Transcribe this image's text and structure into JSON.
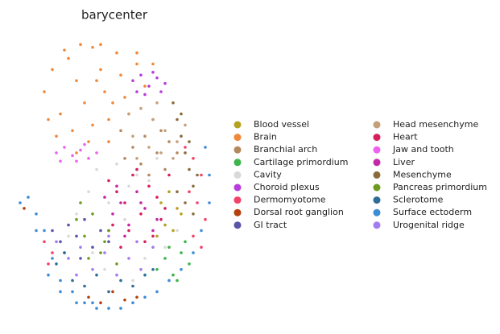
{
  "chart_data": {
    "type": "scatter",
    "title": "barycenter",
    "xlim": [
      0,
      100
    ],
    "ylim": [
      0,
      100
    ],
    "series": [
      {
        "name": "Blood vessel",
        "color": "#b5a21f",
        "x": [
          72,
          76,
          80,
          74,
          78,
          82,
          70
        ],
        "y": [
          40,
          44,
          38,
          32,
          30,
          36,
          28
        ]
      },
      {
        "name": "Brain",
        "color": "#f0883a",
        "x": [
          14,
          18,
          22,
          26,
          30,
          34,
          38,
          42,
          46,
          50,
          20,
          28,
          36,
          44,
          52,
          60,
          24,
          32,
          40,
          48,
          56,
          64,
          30,
          38,
          46,
          54,
          16,
          60,
          68,
          42
        ],
        "y": [
          80,
          88,
          72,
          92,
          84,
          76,
          96,
          88,
          70,
          94,
          64,
          66,
          62,
          80,
          86,
          90,
          95,
          97,
          84,
          76,
          72,
          82,
          58,
          68,
          62,
          78,
          70,
          94,
          90,
          97
        ]
      },
      {
        "name": "Branchial arch",
        "color": "#b5895f",
        "x": [
          52,
          58,
          64,
          70,
          76,
          54,
          62,
          68,
          74,
          80,
          66,
          72
        ],
        "y": [
          66,
          60,
          64,
          58,
          62,
          56,
          54,
          70,
          52,
          58,
          50,
          66
        ]
      },
      {
        "name": "Cartilage primordium",
        "color": "#3cb54a",
        "x": [
          70,
          74,
          78,
          82,
          86,
          76,
          84,
          80
        ],
        "y": [
          16,
          20,
          14,
          22,
          18,
          24,
          26,
          12
        ]
      },
      {
        "name": "Cavity",
        "color": "#d9d9d9",
        "x": [
          40,
          50,
          60,
          70,
          36,
          46,
          56,
          66,
          30,
          42,
          54,
          64,
          74,
          26,
          38,
          80,
          44,
          58
        ],
        "y": [
          52,
          54,
          50,
          56,
          44,
          40,
          46,
          48,
          36,
          30,
          34,
          20,
          24,
          28,
          22,
          30,
          16,
          12
        ]
      },
      {
        "name": "Choroid plexus",
        "color": "#b83ddb",
        "x": [
          58,
          62,
          66,
          70,
          74,
          60,
          64,
          68,
          72
        ],
        "y": [
          84,
          86,
          82,
          85,
          83,
          80,
          79,
          87,
          80
        ]
      },
      {
        "name": "Dermomyotome",
        "color": "#f2426a",
        "x": [
          84,
          88,
          92,
          86,
          90,
          94,
          88,
          92,
          14,
          18,
          16
        ],
        "y": [
          60,
          56,
          50,
          44,
          40,
          34,
          28,
          24,
          26,
          22,
          18
        ]
      },
      {
        "name": "Dorsal root ganglion",
        "color": "#b5410f",
        "x": [
          36,
          42,
          48,
          54,
          60,
          4
        ],
        "y": [
          6,
          4,
          8,
          5,
          6,
          38
        ]
      },
      {
        "name": "GI tract",
        "color": "#5a55a8",
        "x": [
          18,
          22,
          26,
          30,
          34,
          38,
          42,
          46,
          24,
          32
        ],
        "y": [
          30,
          26,
          32,
          28,
          34,
          24,
          30,
          26,
          22,
          20
        ]
      },
      {
        "name": "Head mesenchyme",
        "color": "#c4a07a",
        "x": [
          56,
          62,
          68,
          74,
          80,
          58,
          66,
          72,
          78,
          84,
          60,
          70
        ],
        "y": [
          72,
          74,
          70,
          66,
          62,
          64,
          60,
          58,
          56,
          68,
          56,
          76
        ]
      },
      {
        "name": "Heart",
        "color": "#d61f5f",
        "x": [
          46,
          50,
          54,
          58,
          62,
          66,
          70,
          74,
          48,
          56,
          64,
          72,
          52,
          60,
          68,
          76
        ],
        "y": [
          48,
          44,
          40,
          50,
          36,
          46,
          42,
          38,
          32,
          30,
          26,
          34,
          24,
          52,
          28,
          50
        ]
      },
      {
        "name": "Jaw and tooth",
        "color": "#ee62ee",
        "x": [
          20,
          24,
          28,
          32,
          36,
          22,
          30,
          34,
          40
        ],
        "y": [
          58,
          60,
          57,
          59,
          56,
          55,
          55,
          61,
          58
        ]
      },
      {
        "name": "Liver",
        "color": "#c427a8",
        "x": [
          44,
          48,
          52,
          56,
          60,
          64,
          68,
          46,
          54,
          62,
          70,
          50
        ],
        "y": [
          42,
          36,
          40,
          32,
          44,
          38,
          30,
          30,
          28,
          40,
          34,
          46
        ]
      },
      {
        "name": "Mesenchyme",
        "color": "#8a6c3a",
        "x": [
          78,
          80,
          82,
          84,
          86,
          88,
          80,
          84,
          88,
          82,
          86,
          90
        ],
        "y": [
          76,
          70,
          64,
          58,
          52,
          46,
          44,
          40,
          36,
          72,
          62,
          50
        ]
      },
      {
        "name": "Pancreas primordium",
        "color": "#6f9a22",
        "x": [
          30,
          34,
          38,
          42,
          46,
          50,
          36,
          44,
          32
        ],
        "y": [
          34,
          28,
          36,
          22,
          30,
          18,
          20,
          26,
          40
        ]
      },
      {
        "name": "Sclerotome",
        "color": "#2e6e96",
        "x": [
          28,
          34,
          40,
          46,
          52,
          58,
          64,
          68,
          20,
          24
        ],
        "y": [
          12,
          10,
          14,
          8,
          12,
          10,
          14,
          16,
          18,
          22
        ]
      },
      {
        "name": "Surface ectoderm",
        "color": "#3d8cd6",
        "x": [
          2,
          6,
          10,
          14,
          18,
          22,
          28,
          34,
          40,
          46,
          52,
          58,
          64,
          70,
          76,
          82,
          88,
          92,
          96,
          96,
          94,
          10,
          16,
          22,
          30,
          38
        ],
        "y": [
          40,
          42,
          36,
          30,
          20,
          12,
          8,
          4,
          2,
          2,
          2,
          4,
          6,
          8,
          12,
          16,
          22,
          30,
          40,
          50,
          60,
          30,
          14,
          8,
          4,
          4
        ]
      },
      {
        "name": "Urogenital ridge",
        "color": "#a37bf0",
        "x": [
          20,
          26,
          32,
          38,
          44,
          50,
          56,
          62,
          68,
          30,
          46,
          60
        ],
        "y": [
          26,
          20,
          24,
          16,
          22,
          14,
          20,
          16,
          24,
          14,
          28,
          26
        ]
      }
    ]
  }
}
